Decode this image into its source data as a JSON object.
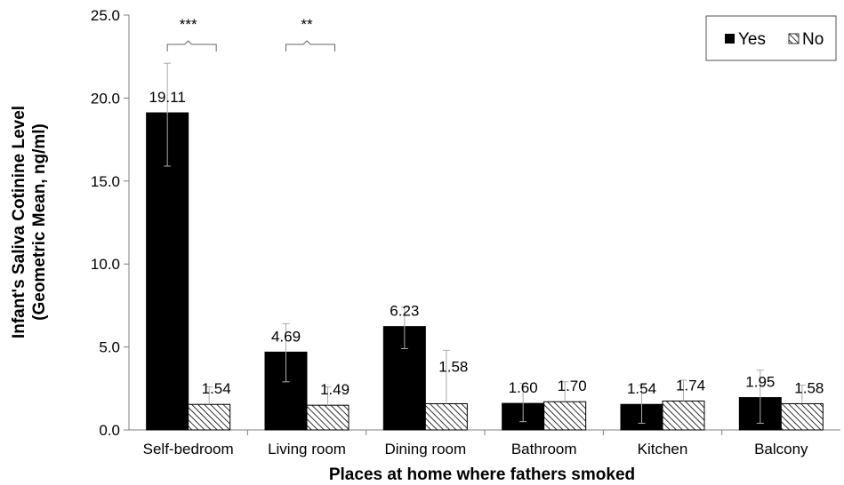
{
  "chart_data": {
    "type": "bar",
    "title": "",
    "xlabel": "Places at home where fathers smoked",
    "ylabel_lines": [
      "Infant's Saliva Cotinine Level",
      "(Geometric Mean, ng/ml)"
    ],
    "ylim": [
      0,
      25
    ],
    "yticks": [
      "0.0",
      "5.0",
      "10.0",
      "15.0",
      "20.0",
      "25.0"
    ],
    "ytick_values": [
      0,
      5,
      10,
      15,
      20,
      25
    ],
    "grid": false,
    "legend_position": "top-right",
    "categories": [
      "Self-bedroom",
      "Living room",
      "Dining room",
      "Bathroom",
      "Kitchen",
      "Balcony"
    ],
    "series": [
      {
        "name": "Yes",
        "fill": "solid-black",
        "values": [
          19.11,
          4.69,
          6.23,
          1.6,
          1.54,
          1.95
        ],
        "labels": [
          "19.11",
          "4.69",
          "6.23",
          "1.60",
          "1.54",
          "1.95"
        ],
        "error_upper": [
          22.1,
          6.4,
          7.4,
          2.8,
          2.7,
          3.6
        ],
        "error_lower": [
          15.9,
          2.9,
          4.9,
          0.5,
          0.4,
          0.4
        ]
      },
      {
        "name": "No",
        "fill": "hatched",
        "values": [
          1.54,
          1.49,
          1.58,
          1.7,
          1.74,
          1.58
        ],
        "labels": [
          "1.54",
          "1.49",
          "1.58",
          "1.70",
          "1.74",
          "1.58"
        ],
        "error_upper": [
          2.6,
          2.6,
          4.8,
          2.9,
          3.0,
          2.7
        ],
        "error_lower": [
          1.54,
          1.49,
          1.58,
          1.7,
          1.74,
          1.58
        ]
      }
    ],
    "significance": [
      {
        "category_index": 0,
        "label": "***"
      },
      {
        "category_index": 1,
        "label": "**"
      }
    ],
    "colors": {
      "bar_yes": "#000000",
      "bar_no_fill": "#ffffff",
      "hatch": "#000000",
      "error_bar": "#aaaaaa",
      "axis": "#808080"
    }
  }
}
